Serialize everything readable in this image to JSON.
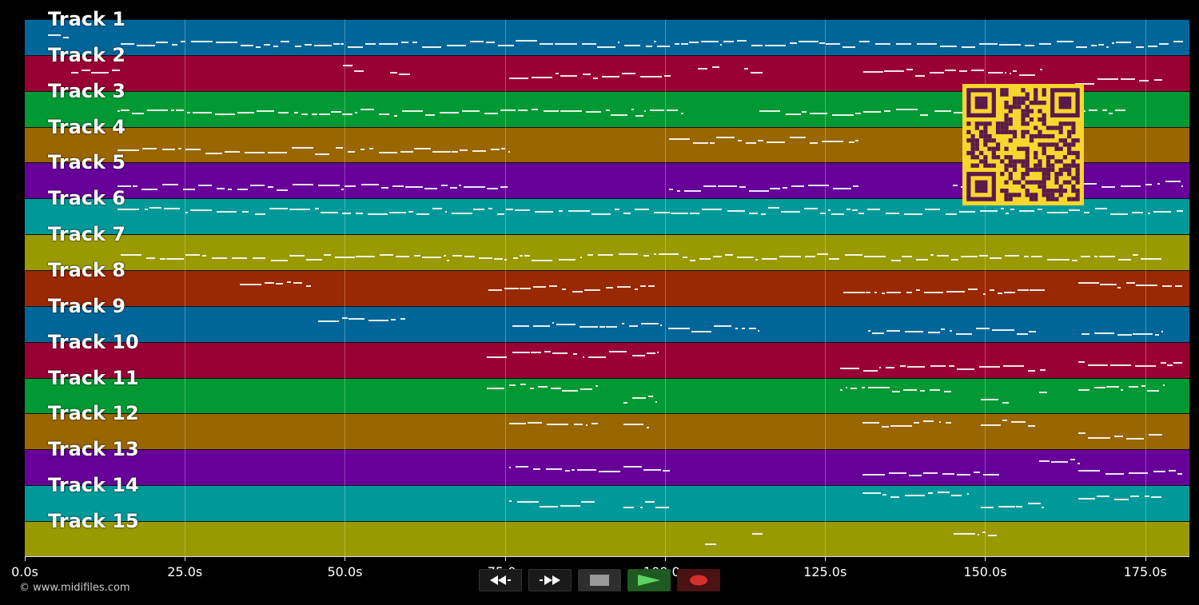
{
  "app": {
    "copyright": "© www.midifiles.com"
  },
  "tracks": [
    {
      "label": "Track 1",
      "color": "#006699"
    },
    {
      "label": "Track 2",
      "color": "#990033"
    },
    {
      "label": "Track 3",
      "color": "#009933"
    },
    {
      "label": "Track 4",
      "color": "#996600"
    },
    {
      "label": "Track 5",
      "color": "#660099"
    },
    {
      "label": "Track 6",
      "color": "#009999"
    },
    {
      "label": "Track 7",
      "color": "#999900"
    },
    {
      "label": "Track 8",
      "color": "#992900"
    },
    {
      "label": "Track 9",
      "color": "#006699"
    },
    {
      "label": "Track 10",
      "color": "#990033"
    },
    {
      "label": "Track 11",
      "color": "#009933"
    },
    {
      "label": "Track 12",
      "color": "#996600"
    },
    {
      "label": "Track 13",
      "color": "#660099"
    },
    {
      "label": "Track 14",
      "color": "#009999"
    },
    {
      "label": "Track 15",
      "color": "#999900"
    }
  ],
  "timeline": {
    "duration": 181.9,
    "ticks": [
      {
        "value": 0,
        "label": "0.0s"
      },
      {
        "value": 25,
        "label": "25.0s"
      },
      {
        "value": 50,
        "label": "50.0s"
      },
      {
        "value": 75,
        "label": "75.0s"
      },
      {
        "value": 100,
        "label": "100.0s"
      },
      {
        "value": 125,
        "label": "125.0s"
      },
      {
        "value": 150,
        "label": "150.0s"
      },
      {
        "value": 175,
        "label": "175.0s"
      }
    ]
  },
  "activity": [
    [
      [
        3.6,
        7.0
      ],
      [
        15,
        181
      ]
    ],
    [
      [
        7.3,
        15
      ],
      [
        49.7,
        53
      ],
      [
        57,
        60.3
      ],
      [
        75.6,
        101
      ],
      [
        105.1,
        108.6
      ],
      [
        112.4,
        115.4
      ],
      [
        131,
        159
      ],
      [
        164,
        177.8
      ]
    ],
    [
      [
        14.5,
        103.3
      ],
      [
        114.7,
        172
      ]
    ],
    [
      [
        14.5,
        75.5
      ],
      [
        100.6,
        130.4
      ]
    ],
    [
      [
        14.5,
        75.5
      ],
      [
        100.6,
        130.4
      ],
      [
        145,
        181
      ]
    ],
    [
      [
        14.5,
        181
      ]
    ],
    [
      [
        15,
        177.8
      ]
    ],
    [
      [
        33.6,
        44.8
      ],
      [
        72.4,
        98.9
      ],
      [
        127.8,
        159.6
      ],
      [
        164.5,
        180.9
      ]
    ],
    [
      [
        45.8,
        59.6
      ],
      [
        76.1,
        99.6
      ],
      [
        100.5,
        114.6
      ],
      [
        131.7,
        158.4
      ],
      [
        165,
        177.6
      ]
    ],
    [
      [
        72.1,
        98.9
      ],
      [
        127.4,
        159.5
      ],
      [
        164.5,
        181
      ]
    ],
    [
      [
        72.1,
        89.6
      ],
      [
        93.5,
        98.8
      ],
      [
        127.3,
        144.8
      ],
      [
        149.3,
        153.8
      ],
      [
        158.4,
        159.8
      ],
      [
        164.5,
        177.8
      ]
    ],
    [
      [
        75.6,
        89.6
      ],
      [
        93.5,
        97.6
      ],
      [
        130.9,
        144.8
      ],
      [
        149.3,
        157.9
      ],
      [
        164.5,
        177.8
      ]
    ],
    [
      [
        75.6,
        100.9
      ],
      [
        130.9,
        152.3
      ],
      [
        158.4,
        164.9
      ],
      [
        164.5,
        180.9
      ]
    ],
    [
      [
        75.6,
        89.1
      ],
      [
        93.5,
        100.7
      ],
      [
        130.9,
        147.6
      ],
      [
        149.3,
        159.5
      ],
      [
        164.5,
        177.6
      ]
    ],
    [
      [
        106.3,
        108.1
      ],
      [
        113.6,
        115.3
      ],
      [
        145.1,
        151.9
      ]
    ]
  ],
  "transport": {
    "rewind_icon": "rewind-icon",
    "forward_icon": "fast-forward-icon",
    "stop_icon": "stop-icon",
    "play_icon": "play-icon",
    "record_icon": "record-icon"
  },
  "overlay": {
    "qr_icon": "qr-code"
  }
}
